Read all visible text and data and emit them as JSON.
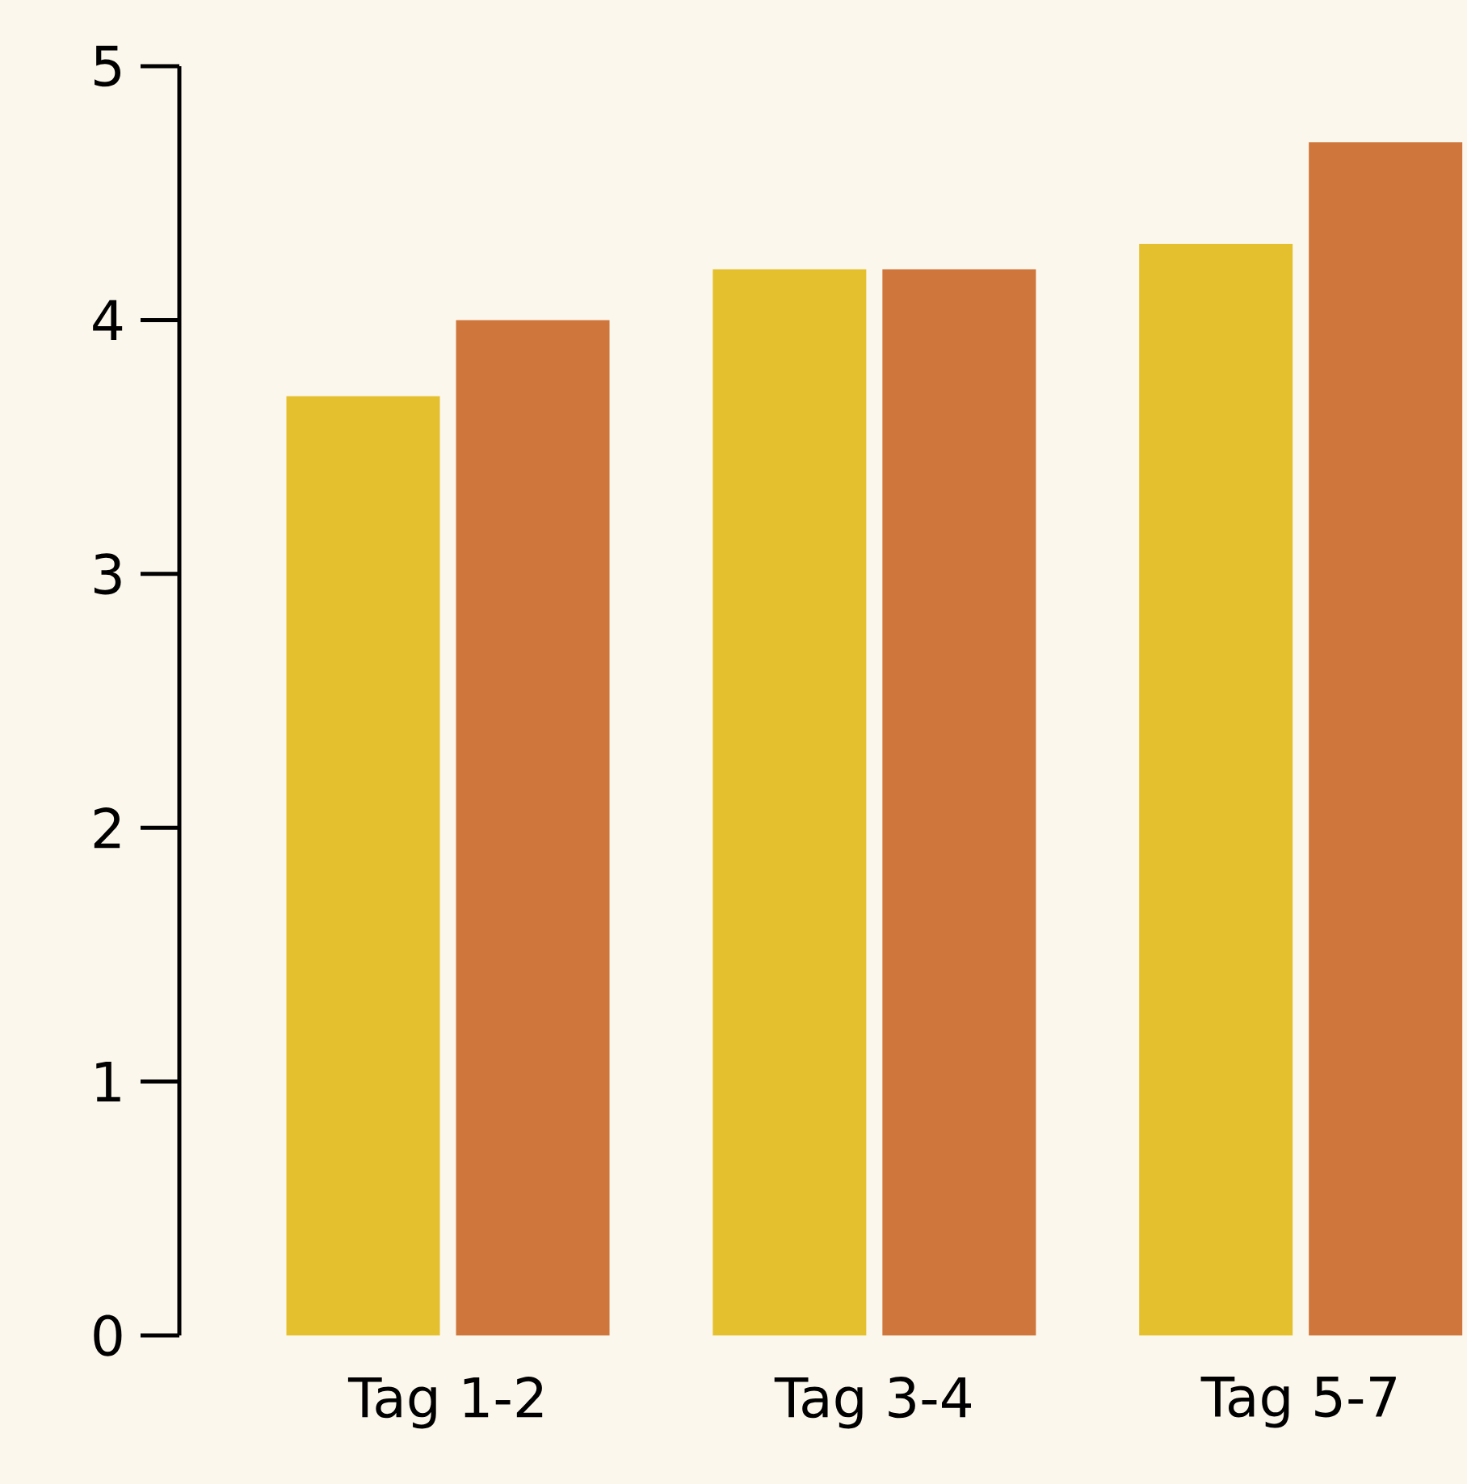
{
  "chart_data": {
    "type": "bar",
    "categories": [
      "Tag 1-2",
      "Tag 3-4",
      "Tag 5-7"
    ],
    "series": [
      {
        "color": "#e5c02e",
        "values": [
          3.7,
          4.2,
          4.3
        ]
      },
      {
        "color": "#cf763c",
        "values": [
          4.0,
          4.2,
          4.7
        ]
      }
    ],
    "ylim": [
      0,
      5
    ],
    "yticks": [
      0,
      1,
      2,
      3,
      4,
      5
    ]
  }
}
